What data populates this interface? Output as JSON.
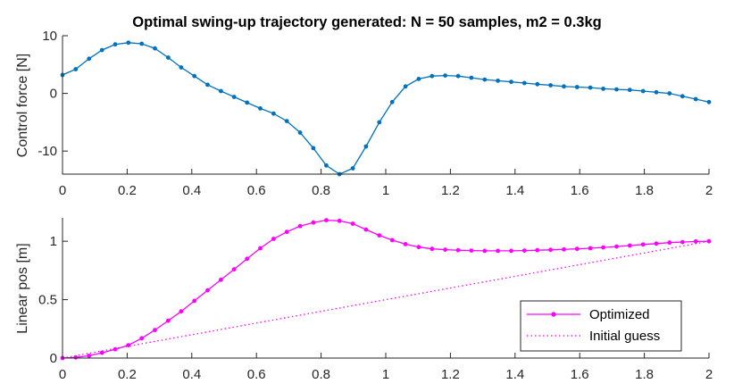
{
  "chart_data": [
    {
      "type": "line",
      "title": "Optimal swing-up trajectory generated: N = 50 samples, m2 = 0.3kg",
      "xlabel": "",
      "ylabel": "Control force [N]",
      "xlim": [
        0,
        2
      ],
      "ylim": [
        -14,
        10
      ],
      "xticks": [
        "0",
        "0.2",
        "0.4",
        "0.6",
        "0.8",
        "1",
        "1.2",
        "1.4",
        "1.6",
        "1.8",
        "2"
      ],
      "yticks": [
        "-10",
        "0",
        "10"
      ],
      "grid": false,
      "series": [
        {
          "name": "",
          "color": "#0072BD",
          "marker": "dot",
          "x": [
            0,
            0.041,
            0.082,
            0.122,
            0.163,
            0.204,
            0.245,
            0.286,
            0.327,
            0.367,
            0.408,
            0.449,
            0.49,
            0.531,
            0.571,
            0.612,
            0.653,
            0.694,
            0.735,
            0.776,
            0.816,
            0.857,
            0.898,
            0.939,
            0.98,
            1.02,
            1.061,
            1.102,
            1.143,
            1.184,
            1.224,
            1.265,
            1.306,
            1.347,
            1.388,
            1.429,
            1.469,
            1.51,
            1.551,
            1.592,
            1.633,
            1.673,
            1.714,
            1.755,
            1.796,
            1.837,
            1.878,
            1.918,
            1.959,
            2.0
          ],
          "y": [
            3.2,
            4.2,
            6.0,
            7.5,
            8.5,
            8.8,
            8.6,
            7.8,
            6.2,
            4.5,
            3.0,
            1.5,
            0.4,
            -0.6,
            -1.6,
            -2.6,
            -3.5,
            -4.8,
            -6.8,
            -9.5,
            -12.5,
            -14.0,
            -13.0,
            -9.2,
            -5.0,
            -1.5,
            1.2,
            2.5,
            3.0,
            3.1,
            3.0,
            2.7,
            2.4,
            2.2,
            2.0,
            1.8,
            1.6,
            1.4,
            1.2,
            1.1,
            1.0,
            0.8,
            0.7,
            0.6,
            0.4,
            0.2,
            0.0,
            -0.5,
            -1.0,
            -1.5
          ]
        }
      ]
    },
    {
      "type": "line",
      "title": "",
      "xlabel": "",
      "ylabel": "Linear pos [m]",
      "xlim": [
        0,
        2
      ],
      "ylim": [
        0,
        1.2
      ],
      "xticks": [
        "0",
        "0.2",
        "0.4",
        "0.6",
        "0.8",
        "1",
        "1.2",
        "1.4",
        "1.6",
        "1.8",
        "2"
      ],
      "yticks": [
        "0",
        "0.5",
        "1"
      ],
      "grid": false,
      "legend_position": "bottom-right",
      "series": [
        {
          "name": "Optimized",
          "color": "#FF00FF",
          "style": "solid",
          "marker": "dot",
          "x": [
            0,
            0.041,
            0.082,
            0.122,
            0.163,
            0.204,
            0.245,
            0.286,
            0.327,
            0.367,
            0.408,
            0.449,
            0.49,
            0.531,
            0.571,
            0.612,
            0.653,
            0.694,
            0.735,
            0.776,
            0.816,
            0.857,
            0.898,
            0.939,
            0.98,
            1.02,
            1.061,
            1.102,
            1.143,
            1.184,
            1.224,
            1.265,
            1.306,
            1.347,
            1.388,
            1.429,
            1.469,
            1.51,
            1.551,
            1.592,
            1.633,
            1.673,
            1.714,
            1.755,
            1.796,
            1.837,
            1.878,
            1.918,
            1.959,
            2.0
          ],
          "y": [
            0.0,
            0.005,
            0.02,
            0.045,
            0.075,
            0.11,
            0.17,
            0.24,
            0.32,
            0.4,
            0.49,
            0.58,
            0.67,
            0.76,
            0.85,
            0.94,
            1.02,
            1.08,
            1.13,
            1.16,
            1.18,
            1.175,
            1.15,
            1.1,
            1.05,
            1.01,
            0.975,
            0.95,
            0.935,
            0.928,
            0.923,
            0.92,
            0.918,
            0.918,
            0.918,
            0.92,
            0.923,
            0.926,
            0.93,
            0.935,
            0.94,
            0.947,
            0.955,
            0.963,
            0.972,
            0.98,
            0.988,
            0.993,
            0.998,
            1.0
          ]
        },
        {
          "name": "Initial guess",
          "color": "#FF00FF",
          "style": "dotted",
          "marker": "none",
          "x": [
            0,
            2
          ],
          "y": [
            0,
            1
          ]
        }
      ]
    }
  ]
}
